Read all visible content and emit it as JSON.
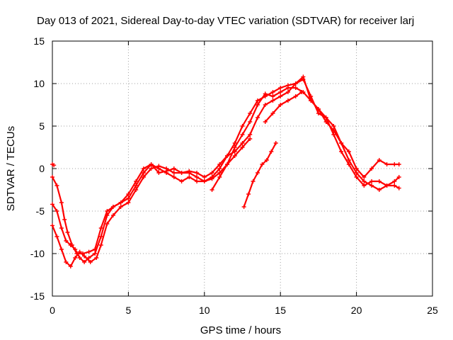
{
  "chart_data": {
    "type": "scatter",
    "title": "Day 013 of 2021, Sidereal Day-to-day VTEC variation (SDTVAR) for receiver larj",
    "xlabel": "GPS time / hours",
    "ylabel": "SDTVAR / TECUs",
    "xlim": [
      0,
      25
    ],
    "ylim": [
      -15,
      15
    ],
    "xticks": [
      0,
      5,
      10,
      15,
      20,
      25
    ],
    "yticks": [
      -15,
      -10,
      -5,
      0,
      5,
      10,
      15
    ],
    "grid": true,
    "marker": "plus",
    "color": "#ff0000",
    "series": [
      {
        "x": [
          0.0,
          0.3,
          0.6,
          0.8,
          1.0,
          1.3,
          1.6,
          2.0,
          2.4,
          2.8,
          3.2,
          3.6,
          4.0,
          4.5,
          5.0,
          5.5,
          6.0,
          6.5,
          7.0,
          7.5,
          8.0,
          8.5,
          9.0,
          9.5,
          10.0,
          10.5,
          11.0,
          11.5,
          12.0,
          12.5,
          13.0,
          13.5,
          14.0,
          14.5,
          15.0,
          15.5,
          16.0,
          16.5,
          17.0,
          17.5,
          18.0,
          18.5,
          19.0,
          19.5,
          20.0,
          20.5,
          21.0,
          21.5,
          22.0,
          22.5,
          22.8
        ],
        "values": [
          -1.0,
          -2.0,
          -4.0,
          -6.0,
          -7.5,
          -9.0,
          -10.0,
          -10.0,
          -9.8,
          -9.5,
          -7.0,
          -5.0,
          -4.5,
          -4.0,
          -3.0,
          -1.5,
          0.0,
          0.5,
          -0.5,
          -0.3,
          0.0,
          -0.5,
          -0.5,
          -1.0,
          -1.5,
          -1.0,
          0.0,
          1.5,
          3.0,
          5.0,
          6.5,
          8.0,
          8.5,
          9.0,
          9.5,
          9.8,
          10.0,
          10.5,
          8.5,
          6.5,
          6.0,
          5.0,
          3.0,
          1.0,
          -0.5,
          -1.5,
          -2.0,
          -2.5,
          -2.0,
          -1.5,
          -1.0
        ]
      },
      {
        "x": [
          0.0,
          0.3,
          0.6,
          0.9,
          1.2,
          1.5,
          1.8,
          2.1,
          2.4,
          2.8,
          3.2,
          3.6,
          4.0,
          4.5,
          5.0,
          5.5,
          6.0,
          6.5,
          7.0,
          7.5,
          8.0,
          8.5,
          9.0,
          9.5,
          10.0,
          10.5,
          11.0,
          11.5,
          12.0,
          12.5,
          13.0,
          13.5,
          14.0,
          14.5,
          15.0,
          15.5,
          16.0,
          16.5,
          17.0,
          17.5,
          18.0,
          18.5,
          19.0,
          19.5,
          20.0,
          20.5,
          21.0,
          21.5,
          22.0,
          22.5,
          22.8
        ],
        "values": [
          -4.2,
          -5.0,
          -7.0,
          -8.5,
          -9.0,
          -9.5,
          -10.5,
          -11.0,
          -10.5,
          -10.0,
          -8.0,
          -5.5,
          -4.5,
          -4.0,
          -3.5,
          -2.0,
          -0.5,
          0.5,
          0.0,
          -0.5,
          -1.0,
          -1.5,
          -1.0,
          -1.5,
          -1.5,
          -1.2,
          -0.5,
          0.5,
          2.5,
          4.0,
          5.5,
          7.5,
          8.8,
          8.5,
          9.0,
          9.5,
          9.5,
          9.0,
          8.0,
          7.0,
          6.0,
          4.0,
          2.0,
          0.5,
          -1.0,
          -2.0,
          -1.5,
          -1.5,
          -2.0,
          -2.0,
          -2.3
        ]
      },
      {
        "x": [
          0.0,
          0.3,
          0.6,
          0.9,
          1.2,
          1.5,
          1.8,
          2.1,
          2.5,
          2.9,
          3.2,
          3.6,
          4.0,
          4.5,
          5.0,
          5.5,
          6.0,
          6.5,
          7.0,
          7.5,
          8.0,
          8.5,
          9.0,
          9.5,
          10.0,
          10.5,
          11.0,
          11.5,
          12.0,
          12.5,
          13.0,
          13.5,
          14.0,
          14.5,
          15.0,
          15.5,
          16.0,
          16.5,
          17.0,
          17.5,
          18.0,
          18.5,
          19.0,
          19.5,
          20.0,
          20.5,
          21.0,
          21.5,
          22.0,
          22.5,
          22.8
        ],
        "values": [
          -6.7,
          -8.0,
          -9.5,
          -11.0,
          -11.5,
          -10.5,
          -9.8,
          -10.3,
          -11.0,
          -10.5,
          -9.0,
          -6.5,
          -5.5,
          -4.5,
          -4.0,
          -2.5,
          -1.0,
          0.0,
          0.3,
          0.0,
          -0.5,
          -0.5,
          -0.3,
          -0.5,
          -1.0,
          -0.5,
          0.5,
          1.5,
          2.0,
          3.0,
          4.0,
          6.0,
          7.5,
          8.0,
          8.5,
          9.0,
          10.0,
          10.8,
          8.0,
          7.0,
          5.5,
          4.5,
          3.0,
          2.0,
          0.0,
          -1.0,
          0.0,
          1.0,
          0.5,
          0.5,
          0.5
        ]
      },
      {
        "x": [
          12.6,
          12.9,
          13.2,
          13.5,
          13.8,
          14.1,
          14.4,
          14.7
        ],
        "values": [
          -4.5,
          -3.0,
          -1.5,
          -0.5,
          0.5,
          1.0,
          2.0,
          3.0
        ]
      },
      {
        "x": [
          10.5,
          11.0,
          11.5,
          12.0,
          12.5,
          13.0
        ],
        "values": [
          -2.5,
          -1.0,
          0.5,
          1.5,
          2.5,
          3.5
        ]
      },
      {
        "x": [
          14.0,
          14.5,
          15.0,
          15.5,
          16.0,
          16.4
        ],
        "values": [
          5.5,
          6.5,
          7.5,
          8.0,
          8.5,
          9.0
        ]
      },
      {
        "x": [
          0.0,
          0.1
        ],
        "values": [
          0.5,
          0.4
        ]
      }
    ]
  }
}
